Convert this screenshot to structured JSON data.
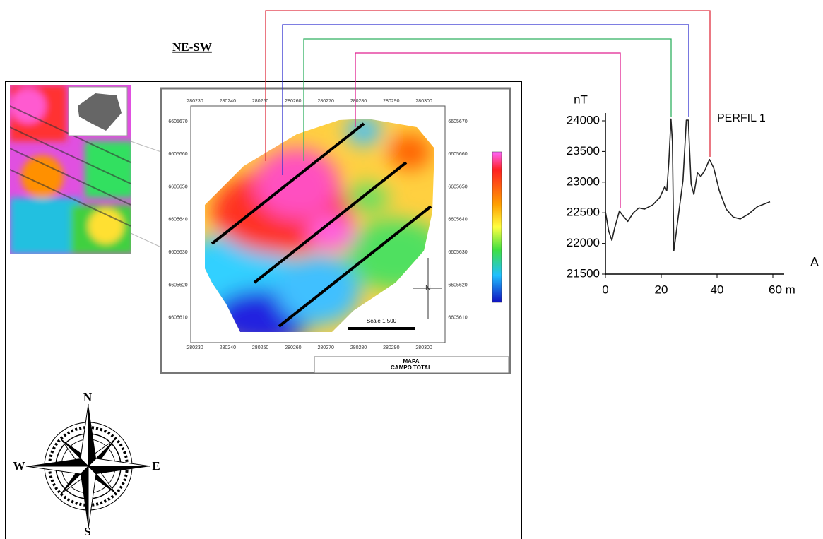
{
  "chart_data": {
    "type": "line",
    "title": "PERFIL 1",
    "y_label": "nT",
    "x_label": "A",
    "x": [
      0,
      1.2,
      2.3,
      3.3,
      5,
      6.3,
      8,
      10,
      12,
      14,
      17,
      19.5,
      21.3,
      22,
      22.7,
      23.5,
      24,
      24.5,
      25,
      26.3,
      27.8,
      29,
      29.7,
      30.7,
      31.7,
      33,
      34.2,
      35.7,
      37.3,
      38.8,
      40.8,
      43.3,
      45.8,
      48.3,
      51.3,
      54.5,
      59
    ],
    "series": [
      {
        "color": "#222222",
        "values": [
          22520,
          22200,
          22050,
          22250,
          22530,
          22450,
          22360,
          22500,
          22580,
          22560,
          22630,
          22750,
          22930,
          22860,
          23320,
          24030,
          23660,
          21880,
          22050,
          22510,
          23030,
          24010,
          24010,
          22970,
          22800,
          23150,
          23090,
          23200,
          23370,
          23230,
          22860,
          22560,
          22430,
          22400,
          22480,
          22600,
          22680
        ]
      }
    ],
    "xlim": [
      0,
      63
    ],
    "xticks": [
      0,
      20,
      40,
      {
        "value": 60,
        "label": "60 m"
      }
    ],
    "ylim": [
      21500,
      24100
    ],
    "yticks": [
      21500,
      22000,
      22500,
      23000,
      23500,
      24000
    ]
  },
  "map": {
    "heading": "NE-SW",
    "x_ticks": [
      "280230",
      "280240",
      "280250",
      "280260",
      "280270",
      "280280",
      "280290",
      "280300"
    ],
    "y_ticks": [
      "6605670",
      "6605660",
      "6605650",
      "6605640",
      "6605630",
      "6605620",
      "6605610"
    ],
    "scale": "Scale 1:500",
    "north": "N",
    "title_block": [
      "MAPA",
      "CAMPO TOTAL"
    ]
  },
  "compass": {
    "n": "N",
    "s": "S",
    "e": "E",
    "w": "W"
  }
}
